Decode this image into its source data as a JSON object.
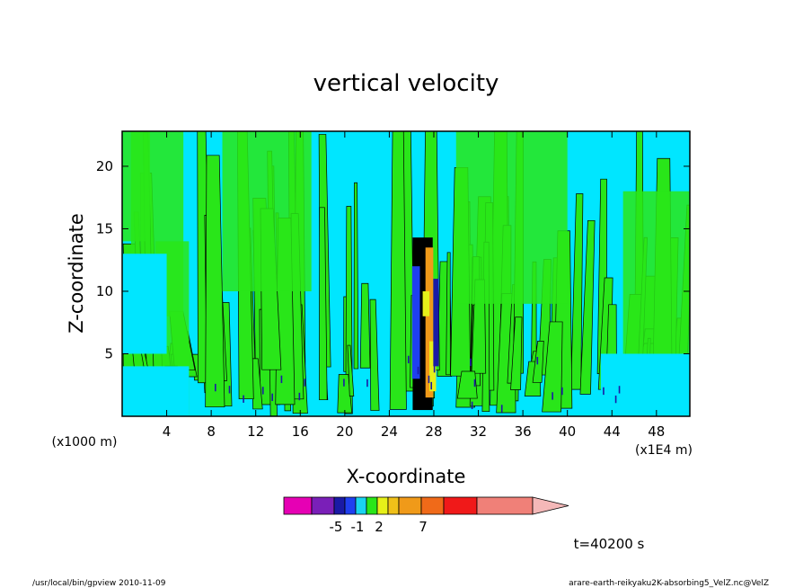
{
  "chart_data": {
    "type": "heatmap",
    "title": "vertical velocity",
    "xlabel": "X-coordinate",
    "ylabel": "Z-coordinate",
    "x_unit": "(x1E4 m)",
    "y_unit": "(x1000 m)",
    "xlim": [
      0,
      51
    ],
    "ylim": [
      0,
      22.8
    ],
    "x_ticks": [
      4,
      8,
      12,
      16,
      20,
      24,
      28,
      32,
      36,
      40,
      44,
      48
    ],
    "y_ticks": [
      5,
      10,
      15,
      20
    ],
    "colorbar": {
      "colors": [
        "#e600b4",
        "#7a1fb8",
        "#1a1aa6",
        "#1f3ff0",
        "#19d3f0",
        "#29e619",
        "#e6f019",
        "#f0c019",
        "#f09a19",
        "#f06a19",
        "#f01919",
        "#f08078",
        "#f4b8b8"
      ],
      "tick_labels": [
        {
          "index": 2,
          "label": "-5"
        },
        {
          "index": 4,
          "label": "-1"
        },
        {
          "index": 6,
          "label": "2"
        },
        {
          "index": 9,
          "label": "7"
        }
      ]
    },
    "time_label": "t=40200 s",
    "background_color": "#00e6ff",
    "positive_color": "#29e619",
    "core_x": 27.5
  },
  "footer": {
    "left": "/usr/local/bin/gpview  2010-11-09",
    "right": "arare-earth-reikyaku2K-absorbing5_VelZ.nc@VelZ"
  }
}
